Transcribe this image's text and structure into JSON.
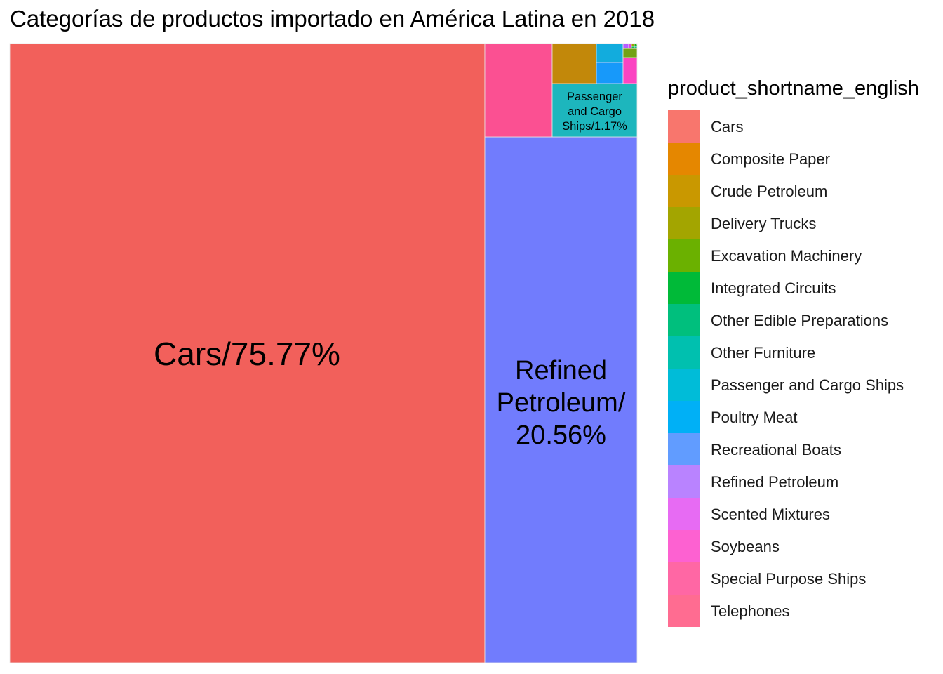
{
  "title": "Categorías de productos importado en América Latina en 2018",
  "legend": {
    "title": "product_shortname_english",
    "items": [
      {
        "label": "Cars",
        "color": "#F8766D"
      },
      {
        "label": "Composite Paper",
        "color": "#E58700"
      },
      {
        "label": "Crude Petroleum",
        "color": "#C99800"
      },
      {
        "label": "Delivery Trucks",
        "color": "#A3A500"
      },
      {
        "label": "Excavation Machinery",
        "color": "#6BB100"
      },
      {
        "label": "Integrated Circuits",
        "color": "#00BA38"
      },
      {
        "label": "Other Edible Preparations",
        "color": "#00BF7D"
      },
      {
        "label": "Other Furniture",
        "color": "#00C0AF"
      },
      {
        "label": "Passenger and Cargo Ships",
        "color": "#00BCD8"
      },
      {
        "label": "Poultry Meat",
        "color": "#00B0F6"
      },
      {
        "label": "Recreational Boats",
        "color": "#619CFF"
      },
      {
        "label": "Refined Petroleum",
        "color": "#B983FF"
      },
      {
        "label": "Scented Mixtures",
        "color": "#E76BF3"
      },
      {
        "label": "Soybeans",
        "color": "#FD61D1"
      },
      {
        "label": "Special Purpose Ships",
        "color": "#FF67A4"
      },
      {
        "label": "Telephones",
        "color": "#FF6C91"
      }
    ]
  },
  "chart_data": {
    "type": "treemap",
    "title": "Categorías de productos importado en América Latina en 2018",
    "tiles": [
      {
        "category": "Cars",
        "share_pct": 75.77,
        "label": "Cars/75.77%",
        "fill": "#F2605B"
      },
      {
        "category": "Refined Petroleum",
        "share_pct": 20.56,
        "label_lines": [
          "Refined",
          "Petroleum/",
          "20.56%"
        ],
        "fill": "#717CFD"
      },
      {
        "category": "Telephones",
        "share_pct": 1.6,
        "fill": "#FB5092"
      },
      {
        "category": "Passenger and Cargo Ships",
        "share_pct": 1.17,
        "label_lines": [
          "Passenger",
          "and Cargo",
          "Ships/1.17%"
        ],
        "fill": "#1DB6BD"
      },
      {
        "category": "Crude Petroleum",
        "share_pct": 0.48,
        "fill": "#C2880A"
      },
      {
        "category": "Poultry Meat",
        "share_pct": 0.2,
        "fill": "#12ACDD"
      },
      {
        "category": "Recreational Boats",
        "share_pct": 0.2,
        "fill": "#1799FA"
      },
      {
        "category": "Special Purpose Ships",
        "share_pct": 0.1,
        "fill": "#FB44C2"
      },
      {
        "category": "Excavation Machinery",
        "share_pct": 0.05,
        "fill": "#72A215"
      },
      {
        "category": "Scented Mixtures",
        "share_pct": 0.02,
        "fill": "#B65CFF"
      },
      {
        "category": "Soybeans",
        "share_pct": 0.01,
        "fill": "#E042E8"
      },
      {
        "category": "Delivery Trucks",
        "share_pct": 0.01,
        "fill": "#A29A05"
      },
      {
        "category": "Integrated Circuits",
        "share_pct": 0.01,
        "fill": "#1AB20A"
      },
      {
        "category": "Other Edible Preparations",
        "share_pct": 0.01,
        "fill": "#14B952"
      },
      {
        "category": "Other Furniture",
        "share_pct": 0.01,
        "fill": "#1ABC8A"
      },
      {
        "category": "Composite Paper",
        "share_pct": 0.01,
        "fill": "#DF6E15"
      }
    ]
  }
}
